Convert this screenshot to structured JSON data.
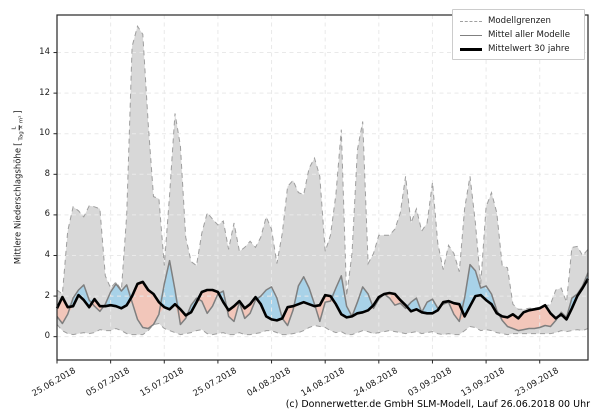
{
  "figure": {
    "footer": "(c) Donnerwetter.de GmbH SLM-Modell, Lauf 26.06.2018 00 Uhr"
  },
  "chart_data": {
    "type": "line",
    "title": "",
    "xlabel": "",
    "ylabel": "Mittlere Niederschlagshöhe",
    "ylabel_unit_numerator": "L",
    "ylabel_unit_denominator": "Tag × m²",
    "x_tick_labels": [
      "25.06.2018",
      "05.07.2018",
      "15.07.2018",
      "25.07.2018",
      "04.08.2018",
      "14.08.2018",
      "24.08.2018",
      "03.09.2018",
      "13.09.2018",
      "23.09.2018"
    ],
    "x_tick_days": [
      0,
      10,
      20,
      30,
      40,
      50,
      60,
      70,
      80,
      90
    ],
    "y_ticks": [
      0,
      2,
      4,
      6,
      8,
      10,
      12,
      14
    ],
    "x_range": [
      0,
      99
    ],
    "y_range": [
      -1.15,
      15.85
    ],
    "grid": true,
    "legend_position": "upper right",
    "legend": [
      {
        "label": "Modellgrenzen",
        "style": "dashed-gray"
      },
      {
        "label": "Mittel aller Modelle",
        "style": "solid-gray"
      },
      {
        "label": "Mittelwert 30 jahre",
        "style": "solid-black-thick"
      }
    ],
    "series": [
      {
        "name": "Modellgrenzen max",
        "role": "envelope_max",
        "values": [
          2.3,
          2.1,
          5.2,
          6.4,
          6.2,
          5.9,
          6.45,
          6.4,
          6.3,
          3.0,
          2.4,
          2.7,
          2.3,
          6.0,
          14.3,
          15.3,
          14.9,
          10.5,
          6.9,
          6.8,
          3.5,
          7.0,
          11.0,
          9.4,
          4.9,
          3.7,
          3.5,
          5.1,
          6.1,
          5.8,
          5.5,
          5.7,
          4.3,
          5.6,
          4.2,
          4.4,
          4.7,
          4.4,
          4.9,
          5.9,
          5.3,
          3.6,
          5.1,
          7.4,
          7.7,
          7.1,
          7.0,
          8.3,
          8.8,
          7.9,
          4.2,
          5.0,
          7.0,
          10.2,
          2.0,
          4.1,
          9.2,
          10.6,
          3.6,
          4.1,
          5.0,
          5.0,
          5.0,
          5.3,
          6.1,
          7.9,
          5.6,
          6.3,
          5.2,
          5.6,
          7.6,
          4.6,
          3.3,
          4.5,
          4.1,
          3.2,
          6.3,
          7.9,
          5.6,
          2.6,
          6.4,
          7.1,
          6.1,
          3.5,
          3.4,
          1.6,
          1.35,
          1.35,
          1.4,
          1.4,
          1.45,
          1.5,
          1.6,
          2.3,
          2.4,
          1.7,
          4.4,
          4.45,
          4.0,
          4.3
        ]
      },
      {
        "name": "Modellgrenzen min",
        "role": "envelope_min",
        "values": [
          0.6,
          0.3,
          0.15,
          0.1,
          0.15,
          0.2,
          0.15,
          0.2,
          0.35,
          0.3,
          0.3,
          0.4,
          0.3,
          0.15,
          0.1,
          0.1,
          0.1,
          0.3,
          0.6,
          0.65,
          0.4,
          0.3,
          0.2,
          0.1,
          0.15,
          0.2,
          0.3,
          0.35,
          0.15,
          0.1,
          0.15,
          0.2,
          0.1,
          0.1,
          0.2,
          0.1,
          0.1,
          0.15,
          0.2,
          0.3,
          0.3,
          0.2,
          0.1,
          0.1,
          0.15,
          0.2,
          0.3,
          0.45,
          0.55,
          0.5,
          0.45,
          0.3,
          0.2,
          0.25,
          0.1,
          0.1,
          0.2,
          0.3,
          0.25,
          0.15,
          0.2,
          0.25,
          0.3,
          0.25,
          0.2,
          0.15,
          0.2,
          0.25,
          0.15,
          0.2,
          0.25,
          0.15,
          0.1,
          0.15,
          0.1,
          0.1,
          0.3,
          0.5,
          0.45,
          0.3,
          0.35,
          0.3,
          0.2,
          0.15,
          0.1,
          0.15,
          0.15,
          0.15,
          0.15,
          0.15,
          0.15,
          0.15,
          0.15,
          0.2,
          0.3,
          0.25,
          0.3,
          0.35,
          0.3,
          0.4
        ]
      },
      {
        "name": "Mittel aller Modelle",
        "role": "model_mean",
        "values": [
          1.0,
          0.65,
          1.1,
          1.9,
          2.3,
          2.55,
          1.8,
          1.5,
          1.25,
          1.6,
          2.2,
          2.6,
          2.25,
          2.55,
          1.7,
          0.85,
          0.45,
          0.4,
          0.6,
          1.1,
          2.6,
          3.75,
          2.3,
          0.6,
          0.9,
          1.55,
          1.9,
          1.75,
          1.15,
          1.5,
          2.1,
          2.25,
          1.0,
          0.75,
          1.7,
          0.9,
          1.15,
          1.8,
          2.0,
          2.3,
          2.45,
          1.9,
          0.9,
          0.55,
          1.3,
          2.5,
          2.95,
          2.4,
          1.6,
          0.75,
          1.7,
          1.75,
          2.4,
          3.0,
          1.5,
          1.0,
          1.7,
          2.45,
          2.1,
          1.4,
          1.85,
          2.1,
          1.9,
          1.55,
          1.65,
          1.4,
          1.7,
          1.9,
          1.2,
          1.7,
          1.85,
          1.4,
          1.6,
          1.7,
          1.1,
          0.75,
          1.9,
          3.55,
          3.25,
          2.4,
          2.5,
          2.1,
          1.3,
          0.8,
          0.5,
          0.4,
          0.3,
          0.35,
          0.4,
          0.4,
          0.45,
          0.55,
          0.5,
          0.8,
          1.2,
          0.95,
          1.9,
          2.1,
          2.5,
          3.15
        ]
      },
      {
        "name": "Mittelwert 30 jahre",
        "role": "mean_30y",
        "values": [
          1.4,
          1.95,
          1.45,
          1.5,
          2.05,
          1.8,
          1.45,
          1.85,
          1.5,
          1.5,
          1.55,
          1.5,
          1.4,
          1.55,
          2.0,
          2.6,
          2.7,
          2.3,
          2.1,
          1.7,
          1.45,
          1.35,
          1.6,
          1.35,
          1.05,
          1.2,
          1.7,
          2.2,
          2.3,
          2.3,
          2.2,
          1.7,
          1.3,
          1.5,
          1.75,
          1.4,
          1.6,
          1.95,
          1.6,
          1.0,
          0.85,
          0.8,
          0.9,
          1.45,
          1.5,
          1.6,
          1.7,
          1.6,
          1.5,
          1.55,
          2.05,
          2.0,
          1.6,
          1.1,
          0.95,
          1.0,
          1.15,
          1.2,
          1.3,
          1.55,
          1.95,
          2.1,
          2.15,
          2.1,
          1.8,
          1.55,
          1.25,
          1.35,
          1.2,
          1.15,
          1.15,
          1.3,
          1.7,
          1.75,
          1.65,
          1.6,
          1.0,
          1.5,
          2.0,
          2.05,
          1.8,
          1.6,
          1.15,
          1.0,
          0.95,
          1.1,
          0.9,
          1.2,
          1.3,
          1.35,
          1.4,
          1.55,
          1.15,
          0.9,
          1.1,
          0.85,
          1.4,
          2.0,
          2.4,
          2.85
        ]
      }
    ],
    "colors": {
      "envelope_fill": "#d8d8d8",
      "envelope_edge": "#9e9e9e",
      "above_fill": "#a8d2e8",
      "below_fill": "#f2c6ba",
      "model_mean_line": "#7f7f7f",
      "mean30_line": "#000000",
      "grid": "#e9e9e9",
      "spine": "#262626"
    }
  }
}
